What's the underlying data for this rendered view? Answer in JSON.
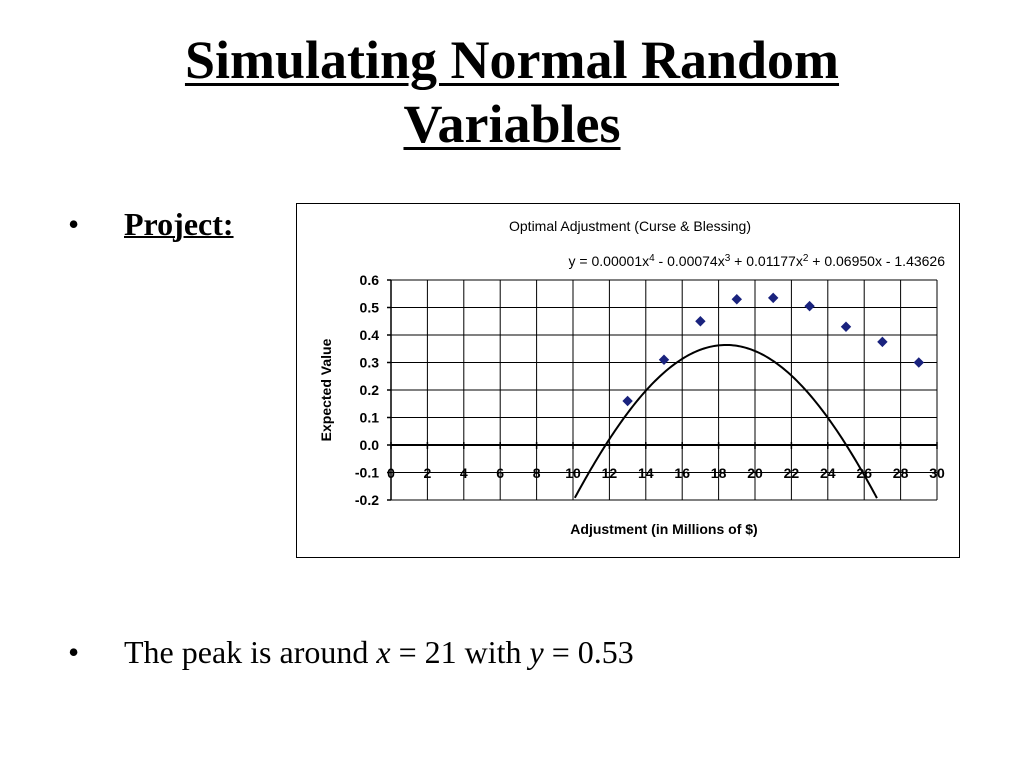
{
  "slide": {
    "title_line1": "Simulating Normal Random",
    "title_line2": "Variables",
    "bullet1": {
      "marker": "•",
      "text": "Project:"
    },
    "bullet2": {
      "marker": "•",
      "prefix": "The peak is around ",
      "var_x": "x",
      "mid": " = 21 with ",
      "var_y": "y",
      "suffix": " = 0.53"
    }
  },
  "chart_data": {
    "type": "scatter",
    "title": "Optimal Adjustment (Curse & Blessing)",
    "equation": "y = 0.00001x4 - 0.00074x3 + 0.01177x2 + 0.06950x - 1.43626",
    "equation_parts": [
      "y = 0.00001x",
      "4",
      " - 0.00074x",
      "3",
      " + 0.01177x",
      "2",
      " + 0.06950x - 1.43626"
    ],
    "xlabel": "Adjustment (in Millions of $)",
    "ylabel": "Expected Value",
    "xlim": [
      0,
      30
    ],
    "ylim": [
      -0.2,
      0.6
    ],
    "xticks": [
      0,
      2,
      4,
      6,
      8,
      10,
      12,
      14,
      16,
      18,
      20,
      22,
      24,
      26,
      28,
      30
    ],
    "yticks": [
      "0.6",
      "0.5",
      "0.4",
      "0.3",
      "0.2",
      "0.1",
      "0.0",
      "-0.1",
      "-0.2"
    ],
    "grid": true,
    "marker_color": "#1a237e",
    "series": [
      {
        "x": [
          13,
          15,
          17,
          19,
          21,
          23,
          25,
          27,
          29
        ],
        "y": [
          0.16,
          0.31,
          0.45,
          0.53,
          0.535,
          0.505,
          0.43,
          0.375,
          0.3
        ]
      }
    ],
    "trendline": {
      "coefficients": [
        1e-05,
        -0.00074,
        0.01177,
        0.0695,
        -1.43626
      ],
      "x_start": 10,
      "x_end": 30
    }
  }
}
